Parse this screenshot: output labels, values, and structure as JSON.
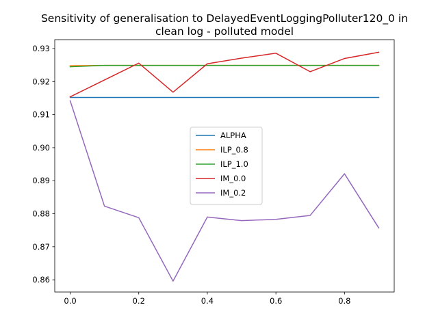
{
  "chart_data": {
    "type": "line",
    "title_line1": "Sensitivity of generalisation to DelayedEventLoggingPolluter120_0 in",
    "title_line2": "clean log - polluted model",
    "xlabel": "",
    "ylabel": "",
    "xlim": [
      -0.045,
      0.945
    ],
    "ylim": [
      0.8563,
      0.9327
    ],
    "x_ticks": [
      0.0,
      0.2,
      0.4,
      0.6,
      0.8
    ],
    "x_tick_labels": [
      "0.0",
      "0.2",
      "0.4",
      "0.6",
      "0.8"
    ],
    "y_ticks": [
      0.86,
      0.87,
      0.88,
      0.89,
      0.9,
      0.91,
      0.92,
      0.93
    ],
    "y_tick_labels": [
      "0.86",
      "0.87",
      "0.88",
      "0.89",
      "0.90",
      "0.91",
      "0.92",
      "0.93"
    ],
    "grid": false,
    "legend_position": "center",
    "x": [
      0.0,
      0.1,
      0.2,
      0.3,
      0.4,
      0.5,
      0.6,
      0.7,
      0.8,
      0.9
    ],
    "series": [
      {
        "name": "ALPHA",
        "color": "#1f77b4",
        "values": [
          0.9152,
          0.9152,
          0.9152,
          0.9152,
          0.9152,
          0.9152,
          0.9152,
          0.9152,
          0.9152,
          0.9152
        ]
      },
      {
        "name": "ILP_0.8",
        "color": "#ff7f0e",
        "values": [
          0.9248,
          0.9249,
          0.9249,
          0.9249,
          0.9249,
          0.9249,
          0.9249,
          0.9249,
          0.9249,
          0.9249
        ]
      },
      {
        "name": "ILP_1.0",
        "color": "#2ca02c",
        "values": [
          0.9245,
          0.9249,
          0.9249,
          0.9249,
          0.9249,
          0.9249,
          0.9249,
          0.9249,
          0.9249,
          0.9249
        ]
      },
      {
        "name": "IM_0.0",
        "color": "#d62728",
        "values": [
          0.9154,
          0.9205,
          0.9256,
          0.9168,
          0.9254,
          0.9271,
          0.9286,
          0.923,
          0.927,
          0.9289
        ]
      },
      {
        "name": "IM_0.2",
        "color": "#9467bd",
        "values": [
          0.9142,
          0.8823,
          0.8788,
          0.8596,
          0.879,
          0.8779,
          0.8783,
          0.8795,
          0.8921,
          0.8757
        ]
      }
    ]
  }
}
